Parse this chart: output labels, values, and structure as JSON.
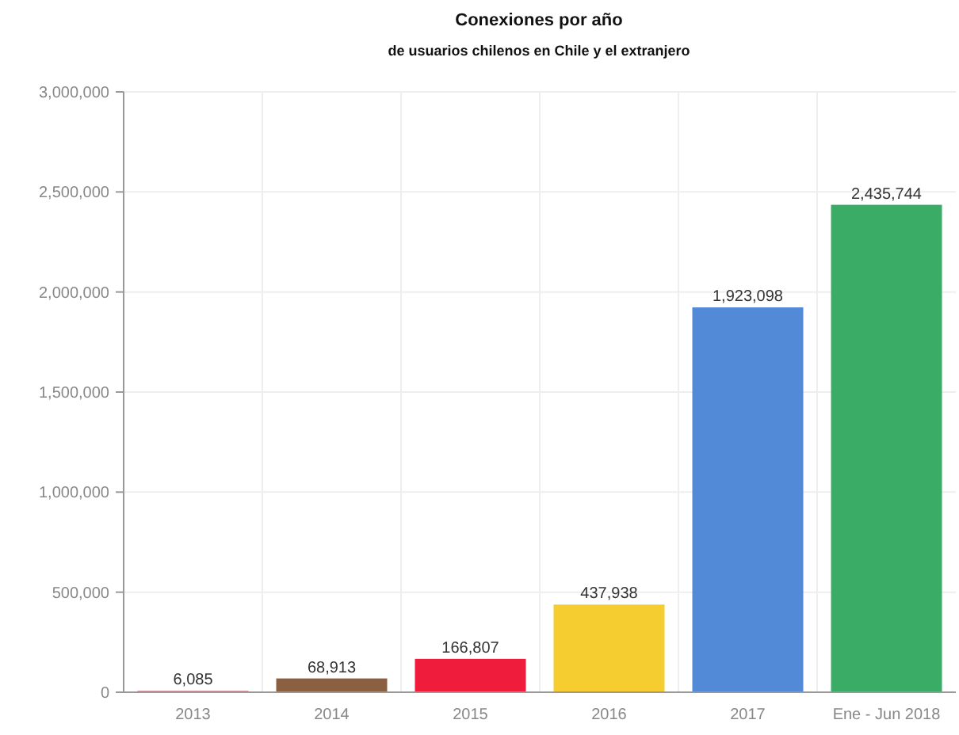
{
  "chart_data": {
    "type": "bar",
    "title": "Conexiones por año",
    "subtitle": "de usuarios chilenos en Chile y el extranjero",
    "categories": [
      "2013",
      "2014",
      "2015",
      "2016",
      "2017",
      "Ene - Jun 2018"
    ],
    "values": [
      6085,
      68913,
      166807,
      437938,
      1923098,
      2435744
    ],
    "colors": [
      "#b03a48",
      "#8b6040",
      "#f01c3c",
      "#f5cd30",
      "#528ad8",
      "#3aac66"
    ],
    "value_labels": [
      "6,085",
      "68,913",
      "166,807",
      "437,938",
      "1,923,098",
      "2,435,744"
    ],
    "ylim": [
      0,
      3000000
    ],
    "yticks": [
      {
        "value": 0,
        "label": "0"
      },
      {
        "value": 500000,
        "label": "500,000"
      },
      {
        "value": 1000000,
        "label": "1,000,000"
      },
      {
        "value": 1500000,
        "label": "1,500,000"
      },
      {
        "value": 2000000,
        "label": "2,000,000"
      },
      {
        "value": 2500000,
        "label": "2,500,000"
      },
      {
        "value": 3000000,
        "label": "3,000,000"
      }
    ],
    "grid": true
  }
}
